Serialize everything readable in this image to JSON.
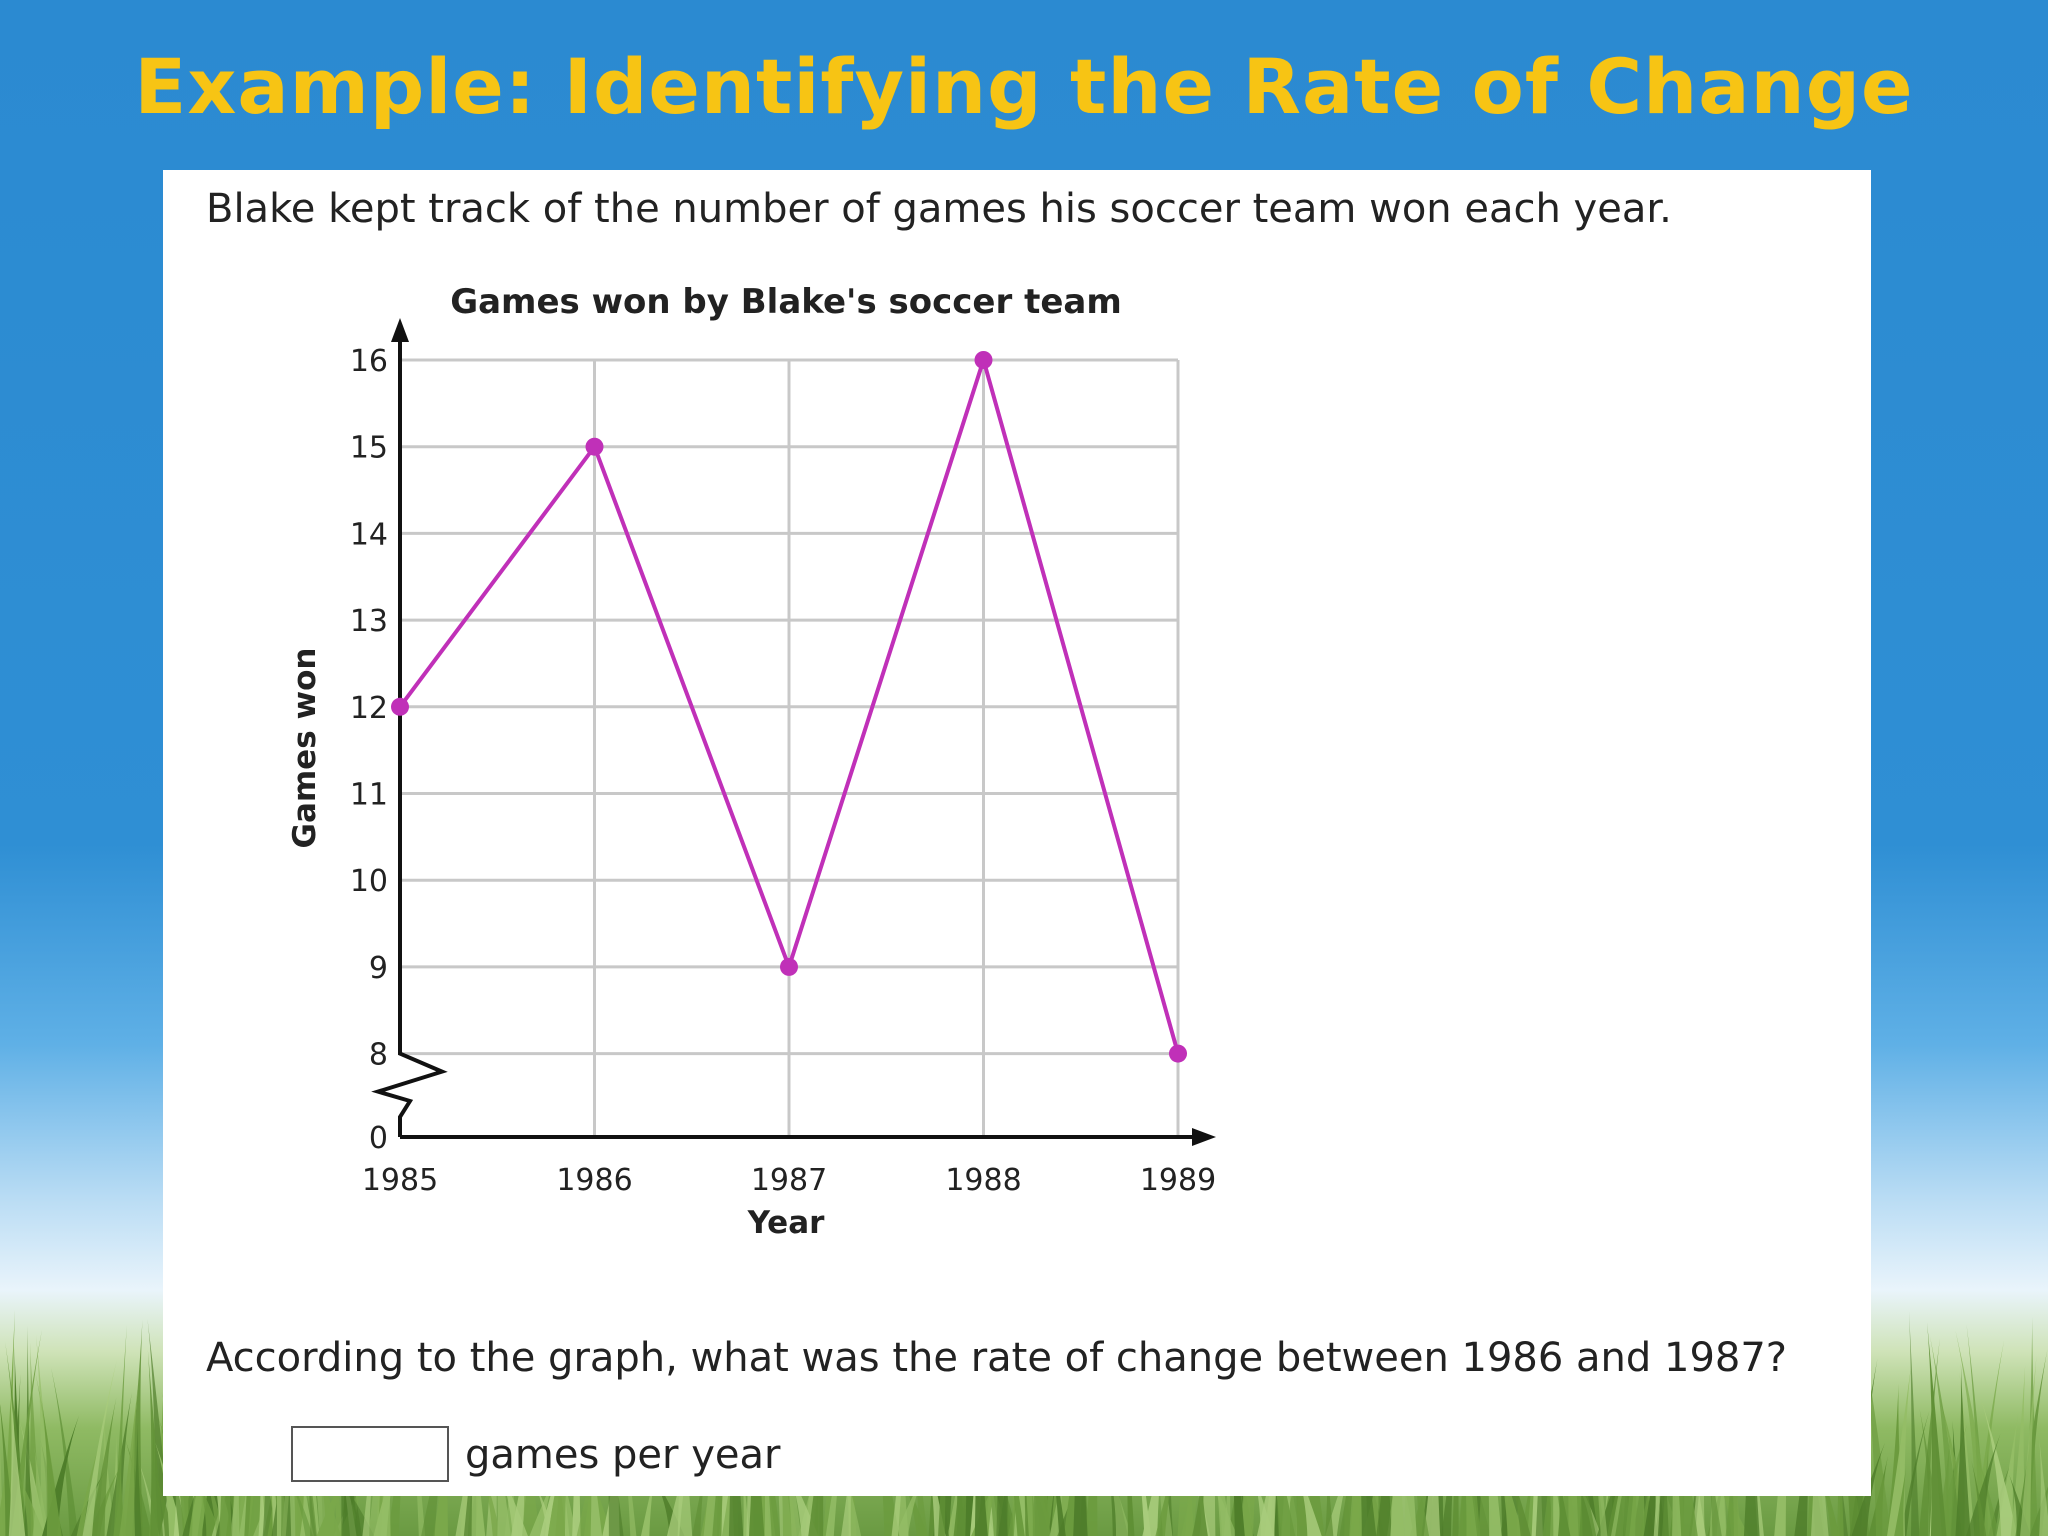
{
  "slide": {
    "title": "Example: Identifying the Rate of Change"
  },
  "problem": {
    "intro": "Blake kept track of the number of games his soccer team won each year.",
    "question": "According to the graph, what was the rate of change between 1986 and 1987?",
    "answer_value": "",
    "answer_unit": "games per year"
  },
  "colors": {
    "title": "#f7c414",
    "series": "#c030b8",
    "grid": "#c8c8c8",
    "background": "#2b8ad1"
  },
  "chart_data": {
    "type": "line",
    "title": "Games won by Blake's soccer team",
    "xlabel": "Year",
    "ylabel": "Games won",
    "categories": [
      "1985",
      "1986",
      "1987",
      "1988",
      "1989"
    ],
    "series": [
      {
        "values": [
          12,
          15,
          9,
          16,
          8
        ]
      }
    ],
    "y_ticks": [
      "0",
      "8",
      "9",
      "10",
      "11",
      "12",
      "13",
      "14",
      "15",
      "16"
    ],
    "ylim": [
      8,
      16
    ],
    "y_axis_break": true,
    "grid": true,
    "legend": "none"
  }
}
